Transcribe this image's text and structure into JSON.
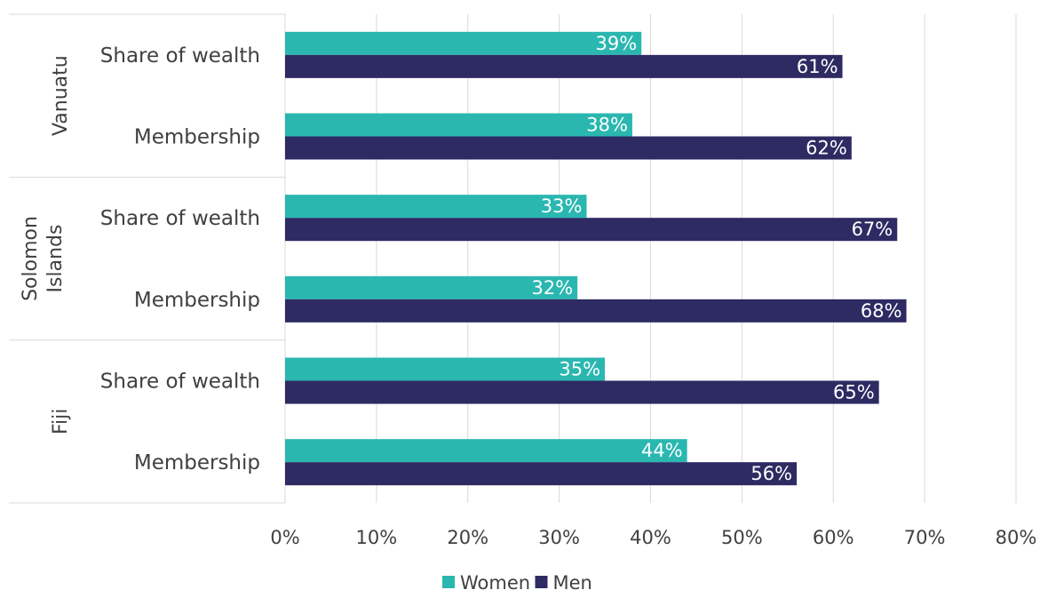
{
  "chart_data": {
    "type": "bar",
    "orientation": "horizontal",
    "groups": [
      {
        "name": "Vanuatu",
        "categories": [
          "Share of wealth",
          "Membership"
        ]
      },
      {
        "name": "Solomon Islands",
        "categories": [
          "Share of wealth",
          "Membership"
        ]
      },
      {
        "name": "Fiji",
        "categories": [
          "Share of wealth",
          "Membership"
        ]
      }
    ],
    "series": [
      {
        "name": "Women",
        "color": "#2ab7b0",
        "values": [
          39,
          38,
          33,
          32,
          35,
          44
        ],
        "labels": [
          "39%",
          "38%",
          "33%",
          "32%",
          "35%",
          "44%"
        ]
      },
      {
        "name": "Men",
        "color": "#2e2a62",
        "values": [
          61,
          62,
          67,
          68,
          65,
          56
        ],
        "labels": [
          "61%",
          "62%",
          "67%",
          "68%",
          "65%",
          "56%"
        ]
      }
    ],
    "xlim": [
      0,
      80
    ],
    "x_ticks": [
      0,
      10,
      20,
      30,
      40,
      50,
      60,
      70,
      80
    ],
    "x_tick_labels": [
      "0%",
      "10%",
      "20%",
      "30%",
      "40%",
      "50%",
      "60%",
      "70%",
      "80%"
    ],
    "grid": true,
    "legend_position": "bottom",
    "title": "",
    "xlabel": "",
    "ylabel": ""
  },
  "legend": [
    {
      "label": "Women",
      "color": "#2ab7b0"
    },
    {
      "label": "Men",
      "color": "#2e2a62"
    }
  ]
}
